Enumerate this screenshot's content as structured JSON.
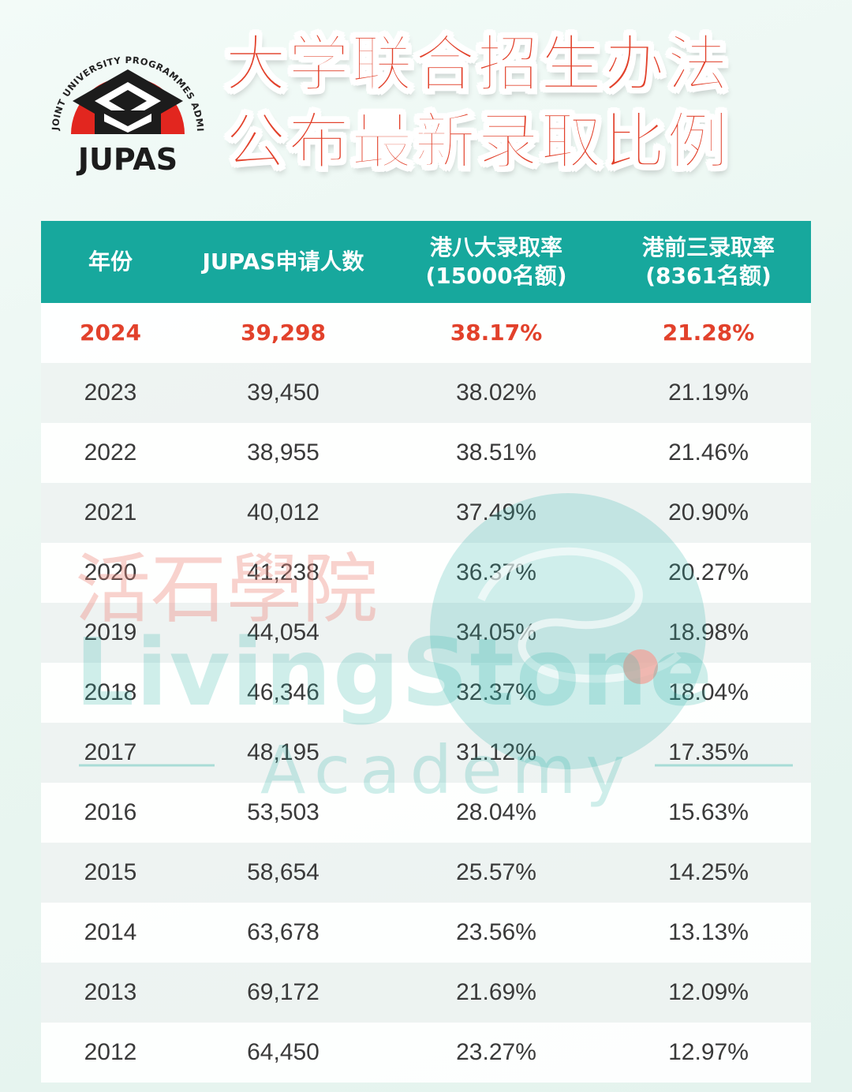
{
  "logo": {
    "ring_text": "JOINT UNIVERSITY PROGRAMMES ADMISSIONS SYSTEM",
    "wordmark": "JUPAS",
    "icon": "graduation-cap-icon"
  },
  "title": {
    "line1": "大学联合招生办法",
    "line2": "公布最新录取比例"
  },
  "table": {
    "headers": [
      {
        "line1": "年份",
        "line2": ""
      },
      {
        "line1": "JUPAS申请人数",
        "line2": ""
      },
      {
        "line1": "港八大录取率",
        "line2": "(15000名额)"
      },
      {
        "line1": "港前三录取率",
        "line2": "(8361名额)"
      }
    ],
    "rows": [
      {
        "year": "2024",
        "applicants": "39,298",
        "big8_rate": "38.17%",
        "top3_rate": "21.28%"
      },
      {
        "year": "2023",
        "applicants": "39,450",
        "big8_rate": "38.02%",
        "top3_rate": "21.19%"
      },
      {
        "year": "2022",
        "applicants": "38,955",
        "big8_rate": "38.51%",
        "top3_rate": "21.46%"
      },
      {
        "year": "2021",
        "applicants": "40,012",
        "big8_rate": "37.49%",
        "top3_rate": "20.90%"
      },
      {
        "year": "2020",
        "applicants": "41,238",
        "big8_rate": "36.37%",
        "top3_rate": "20.27%"
      },
      {
        "year": "2019",
        "applicants": "44,054",
        "big8_rate": "34.05%",
        "top3_rate": "18.98%"
      },
      {
        "year": "2018",
        "applicants": "46,346",
        "big8_rate": "32.37%",
        "top3_rate": "18.04%"
      },
      {
        "year": "2017",
        "applicants": "48,195",
        "big8_rate": "31.12%",
        "top3_rate": "17.35%"
      },
      {
        "year": "2016",
        "applicants": "53,503",
        "big8_rate": "28.04%",
        "top3_rate": "15.63%"
      },
      {
        "year": "2015",
        "applicants": "58,654",
        "big8_rate": "25.57%",
        "top3_rate": "14.25%"
      },
      {
        "year": "2014",
        "applicants": "63,678",
        "big8_rate": "23.56%",
        "top3_rate": "13.13%"
      },
      {
        "year": "2013",
        "applicants": "69,172",
        "big8_rate": "21.69%",
        "top3_rate": "12.09%"
      },
      {
        "year": "2012",
        "applicants": "64,450",
        "big8_rate": "23.27%",
        "top3_rate": "12.97%"
      }
    ]
  },
  "watermark": {
    "chinese": "活石學院",
    "english": "LivingStone",
    "sub": "Academy"
  },
  "colors": {
    "accent_red": "#e2412b",
    "header_teal": "#17a89d",
    "text_dark": "#3a3a3a"
  }
}
